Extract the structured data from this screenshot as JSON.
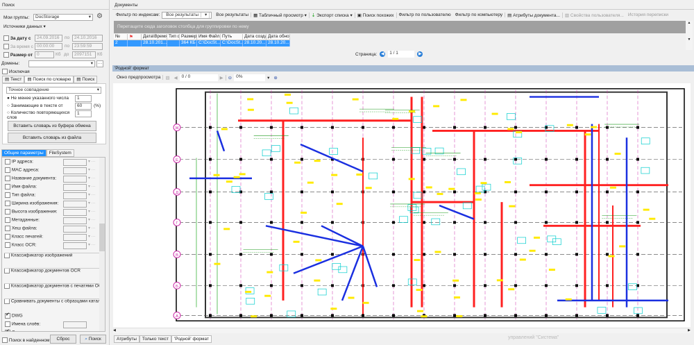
{
  "search": {
    "title": "Поиск",
    "my_groups_label": "Мои группы:",
    "my_groups_value": "DocStorage",
    "data_sources": "Источники данных",
    "date_from_label": "За дату с",
    "date_from": "24.09.2016",
    "date_to_label": "по",
    "date_to": "24.10.2016",
    "time_from_label": "За время с",
    "time_from": "00:00:00",
    "time_to_label": "по",
    "time_to": "23:59:59",
    "size_label": "Размер от",
    "size_from": "0",
    "size_unit": "Кб",
    "size_to_label": "до",
    "size_to": "2097151",
    "size_unit2": "Кб",
    "domains_label": "Домены:",
    "exclude_label": "Исключая",
    "tabs": [
      "Текст",
      "Поиск по словарю",
      "Поиск"
    ],
    "match_mode": "Точное совпадение",
    "radios": [
      {
        "label": "Не менее указанного числа",
        "value": "1",
        "checked": true
      },
      {
        "label": "Занимающие в тексте от",
        "value": "60",
        "unit": "(%)"
      },
      {
        "label": "Количество повторяющихся слов",
        "value": "1"
      }
    ],
    "paste_clipboard": "Вставить словарь из буфера обмена",
    "paste_file": "Вставить словарь из файла",
    "param_tabs": [
      "Общие параметры",
      "FileSystem"
    ],
    "params": [
      "IP адреса:",
      "MAC адреса:",
      "Название документа:",
      "Имя файла:",
      "Тип файла:",
      "Ширина изображения:",
      "Высота изображения:",
      "Метаданные:",
      "Хеш файла:",
      "Класс печатей:",
      "Класс OCR:"
    ],
    "groups": [
      "Классификатор изображений",
      "Классификатор документов OCR",
      "Классификатор документов с печатями OCR",
      "Сравнивать документы с образцами каталога с"
    ],
    "dwg": "DWG",
    "layer_names": "Имена слоёв:",
    "hidden_layers": "Спрятанные слои",
    "search_in_found": "Поиск в найденном",
    "reset": "Сброс",
    "search_btn": "Поиск"
  },
  "documents": {
    "title": "Документы",
    "filter_label": "Фильтр по индексам:",
    "filter_value": "Все результаты",
    "toolbar": [
      "Все результаты",
      "Табличный просмотр",
      "Экспорт списка",
      "Поиск похожих",
      "Фильтр по пользователю",
      "Фильтр по компьютеру",
      "Атрибуты документа...",
      "Свойства пользователя...",
      "История переписки"
    ],
    "group_hint": "Перетащите сюда заголовок столбца для группировки по нему",
    "columns": [
      "№",
      "",
      "Дата\\Время",
      "Тип фа",
      "Размер",
      "Имя Файла",
      "Путь",
      "Дата созда",
      "Дата обнов"
    ],
    "rows": [
      [
        "2",
        "",
        "28.10.201...",
        "",
        "364 КБ",
        "C:\\DocSt...",
        "C:\\DocSt...",
        "28.10.20...",
        "28.10.20..."
      ]
    ],
    "page_label": "Страница:",
    "page_value": "1 / 1"
  },
  "preview": {
    "title": "'Родной' формат",
    "window_label": "Окно предпросмотра",
    "page": "0 / 0",
    "zoom": "0%",
    "watermark": "управлений \"Система\"",
    "bottom_tabs": [
      "Атрибуты",
      "Только текст",
      "'Родной' формат"
    ],
    "axis_rows": [
      "Ж",
      "Е",
      "Д",
      "Г",
      "В",
      "Б",
      "А"
    ]
  },
  "colors": {
    "selection": "#3399ff",
    "header_bar": "#a9bed6",
    "pipe_red": "#ff2020",
    "pipe_blue": "#1a2fe0",
    "grid_magenta": "#cc2aa8",
    "label_yellow": "#ffea00"
  }
}
